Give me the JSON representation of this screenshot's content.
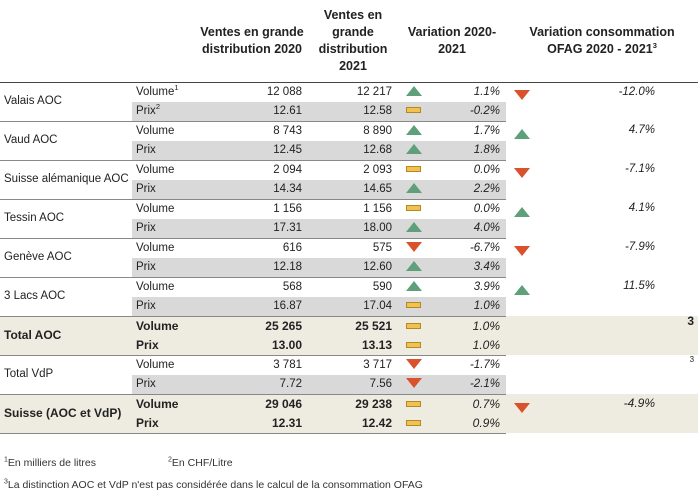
{
  "headers": {
    "ventes2020": "Ventes en grande distribution 2020",
    "ventes2021": "Ventes en grande distribution 2021",
    "variation": "Variation 2020-2021",
    "ofag": "Variation consommation OFAG 2020 - 2021",
    "ofag_sup": "3"
  },
  "labels": {
    "volume": "Volume",
    "prix": "Prix"
  },
  "regions": [
    {
      "name": "Valais AOC",
      "volume_sup": "1",
      "prix_sup": "2",
      "vol2020": "12 088",
      "vol2021": "12 217",
      "vol_var": "1.1%",
      "vol_dir": "up",
      "prix2020": "12.61",
      "prix2021": "12.58",
      "prix_var": "-0.2%",
      "prix_dir": "flat",
      "ofag": "-12.0%",
      "ofag_dir": "down"
    },
    {
      "name": "Vaud AOC",
      "vol2020": "8 743",
      "vol2021": "8 890",
      "vol_var": "1.7%",
      "vol_dir": "up",
      "prix2020": "12.45",
      "prix2021": "12.68",
      "prix_var": "1.8%",
      "prix_dir": "up",
      "ofag": "4.7%",
      "ofag_dir": "up"
    },
    {
      "name": "Suisse alémanique AOC",
      "vol2020": "2 094",
      "vol2021": "2 093",
      "vol_var": "0.0%",
      "vol_dir": "flat",
      "prix2020": "14.34",
      "prix2021": "14.65",
      "prix_var": "2.2%",
      "prix_dir": "up",
      "ofag": "-7.1%",
      "ofag_dir": "down"
    },
    {
      "name": "Tessin AOC",
      "vol2020": "1 156",
      "vol2021": "1 156",
      "vol_var": "0.0%",
      "vol_dir": "flat",
      "prix2020": "17.31",
      "prix2021": "18.00",
      "prix_var": "4.0%",
      "prix_dir": "up",
      "ofag": "4.1%",
      "ofag_dir": "up"
    },
    {
      "name": "Genève AOC",
      "vol2020": "616",
      "vol2021": "575",
      "vol_var": "-6.7%",
      "vol_dir": "down",
      "prix2020": "12.18",
      "prix2021": "12.60",
      "prix_var": "3.4%",
      "prix_dir": "up",
      "ofag": "-7.9%",
      "ofag_dir": "down"
    },
    {
      "name": "3 Lacs AOC",
      "vol2020": "568",
      "vol2021": "590",
      "vol_var": "3.9%",
      "vol_dir": "up",
      "prix2020": "16.87",
      "prix2021": "17.04",
      "prix_var": "1.0%",
      "prix_dir": "flat",
      "ofag": "11.5%",
      "ofag_dir": "up"
    }
  ],
  "total_aoc": {
    "name": "Total AOC",
    "vol2020": "25 265",
    "vol2021": "25 521",
    "vol_var": "1.0%",
    "vol_dir": "flat",
    "prix2020": "13.00",
    "prix2021": "13.13",
    "prix_var": "1.0%",
    "prix_dir": "flat",
    "note": "3"
  },
  "total_vdp": {
    "name": "Total VdP",
    "vol2020": "3 781",
    "vol2021": "3 717",
    "vol_var": "-1.7%",
    "vol_dir": "down",
    "prix2020": "7.72",
    "prix2021": "7.56",
    "prix_var": "-2.1%",
    "prix_dir": "down",
    "note": "3"
  },
  "suisse": {
    "name": "Suisse (AOC et VdP)",
    "vol2020": "29 046",
    "vol2021": "29 238",
    "vol_var": "0.7%",
    "vol_dir": "flat",
    "prix2020": "12.31",
    "prix2021": "12.42",
    "prix_var": "0.9%",
    "prix_dir": "flat",
    "ofag": "-4.9%",
    "ofag_dir": "down"
  },
  "footnotes": {
    "n1_mark": "1",
    "n1": "En milliers de litres",
    "n2_mark": "2",
    "n2": "En CHF/Litre",
    "n3_mark": "3",
    "n3": "La distinction AOC et VdP n'est pas considérée dans le calcul de la consommation OFAG"
  },
  "colors": {
    "up": "#5fa07a",
    "down": "#d9522b",
    "flat": "#f2c14e",
    "total_bg": "#eeebe0",
    "gray_bg": "#d9d9d9"
  }
}
